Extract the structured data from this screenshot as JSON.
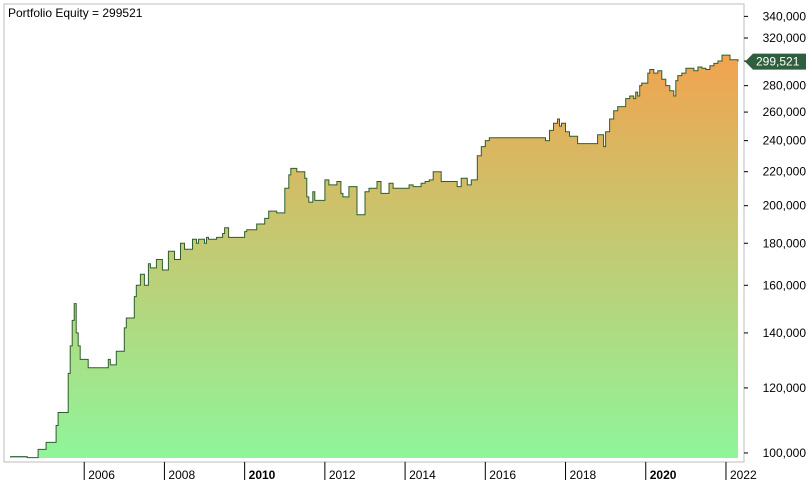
{
  "title": "Portfolio Equity = 299521",
  "chart_data": {
    "type": "area",
    "title": "Portfolio Equity = 299521",
    "y_scale": "log",
    "ylim": [
      97500,
      352000
    ],
    "xlim": [
      2004.15,
      2022.3
    ],
    "y_ticks": [
      100000,
      120000,
      140000,
      160000,
      180000,
      200000,
      220000,
      240000,
      260000,
      280000,
      300000,
      320000,
      340000
    ],
    "y_tick_labels": [
      "100,000",
      "120,000",
      "140,000",
      "160,000",
      "180,000",
      "200,000",
      "220,000",
      "240,000",
      "260,000",
      "280,000",
      "300,000",
      "320,000",
      "340,000"
    ],
    "x_ticks": [
      2006,
      2008,
      2010,
      2012,
      2014,
      2016,
      2018,
      2020,
      2022
    ],
    "x_tick_labels": [
      "2006",
      "2008",
      "2010",
      "2012",
      "2014",
      "2016",
      "2018",
      "2020",
      "2022"
    ],
    "x_bold_ticks": [
      2010,
      2020
    ],
    "last_value_label": "299,521",
    "colors": {
      "line": "#2e5e2e",
      "fill_top": "#f5a04c",
      "fill_bottom": "#8ff59a",
      "marker": "#2f5f3c"
    },
    "series": [
      {
        "x": [
          2004.15,
          2004.55,
          2004.58,
          2004.8,
          2004.85,
          2005.0,
          2005.05,
          2005.2,
          2005.3,
          2005.35,
          2005.45,
          2005.6,
          2005.65,
          2005.7,
          2005.75,
          2005.8,
          2005.85,
          2005.9,
          2006.1,
          2006.15,
          2006.3,
          2006.6,
          2006.65,
          2006.8,
          2007.0,
          2007.05,
          2007.25,
          2007.3,
          2007.4,
          2007.5,
          2007.6,
          2007.65,
          2007.8,
          2007.95,
          2008.1,
          2008.25,
          2008.4,
          2008.5,
          2008.7,
          2008.8,
          2008.85,
          2009.0,
          2009.05,
          2009.1,
          2009.2,
          2009.3,
          2009.45,
          2009.5,
          2009.6,
          2010.0,
          2010.05,
          2010.3,
          2010.5,
          2010.6,
          2010.8,
          2011.0,
          2011.1,
          2011.15,
          2011.3,
          2011.5,
          2011.55,
          2011.6,
          2011.7,
          2011.75,
          2012.0,
          2012.1,
          2012.3,
          2012.4,
          2012.45,
          2012.6,
          2012.8,
          2013.0,
          2013.1,
          2013.25,
          2013.3,
          2013.4,
          2013.6,
          2013.7,
          2013.9,
          2014.1,
          2014.2,
          2014.3,
          2014.4,
          2014.5,
          2014.6,
          2014.7,
          2014.9,
          2015.0,
          2015.1,
          2015.3,
          2015.4,
          2015.55,
          2015.65,
          2015.8,
          2015.9,
          2016.0,
          2016.1,
          2016.5,
          2016.8,
          2017.0,
          2017.3,
          2017.5,
          2017.55,
          2017.6,
          2017.7,
          2017.8,
          2017.85,
          2017.9,
          2018.0,
          2018.1,
          2018.2,
          2018.3,
          2018.5,
          2018.8,
          2018.95,
          2019.0,
          2019.1,
          2019.2,
          2019.3,
          2019.4,
          2019.5,
          2019.6,
          2019.7,
          2019.75,
          2019.8,
          2019.85,
          2019.9,
          2020.0,
          2020.05,
          2020.1,
          2020.2,
          2020.3,
          2020.4,
          2020.5,
          2020.6,
          2020.7,
          2020.75,
          2020.8,
          2020.9,
          2021.0,
          2021.2,
          2021.3,
          2021.4,
          2021.5,
          2021.6,
          2021.7,
          2021.8,
          2021.9,
          2021.95,
          2022.0,
          2022.1,
          2022.2,
          2022.3
        ],
        "values": [
          99000,
          99000,
          98700,
          98700,
          101000,
          101000,
          103000,
          103000,
          108000,
          112000,
          112000,
          125000,
          135000,
          145000,
          152000,
          140000,
          135000,
          130000,
          127000,
          127000,
          127000,
          130000,
          128000,
          133000,
          142000,
          146000,
          155000,
          160000,
          165000,
          160000,
          170000,
          168000,
          172000,
          167000,
          176000,
          172000,
          180000,
          177000,
          182000,
          180000,
          182000,
          180000,
          183000,
          182000,
          182000,
          183000,
          185000,
          188000,
          183000,
          186000,
          187000,
          190000,
          193000,
          197000,
          196000,
          210000,
          218000,
          222000,
          220000,
          216000,
          205000,
          202000,
          208000,
          203000,
          215000,
          212000,
          214000,
          207000,
          205000,
          211000,
          195000,
          208000,
          210000,
          210000,
          214000,
          207000,
          213000,
          210000,
          210000,
          212000,
          211000,
          211000,
          213000,
          214000,
          215000,
          220000,
          214000,
          214000,
          214000,
          211000,
          216000,
          212000,
          215000,
          230000,
          236000,
          240000,
          242000,
          242000,
          242000,
          242000,
          242000,
          240000,
          240000,
          247000,
          252000,
          255000,
          250000,
          252000,
          246000,
          243000,
          243000,
          238000,
          238000,
          244000,
          236000,
          246000,
          255000,
          261000,
          264000,
          264000,
          270000,
          272000,
          270000,
          275000,
          272000,
          280000,
          282000,
          282000,
          290000,
          293000,
          290000,
          292000,
          285000,
          280000,
          276000,
          272000,
          284000,
          288000,
          290000,
          294000,
          292000,
          295000,
          294000,
          293000,
          296000,
          298000,
          300000,
          305000,
          305000,
          305000,
          301000,
          301000,
          299521
        ]
      }
    ]
  }
}
